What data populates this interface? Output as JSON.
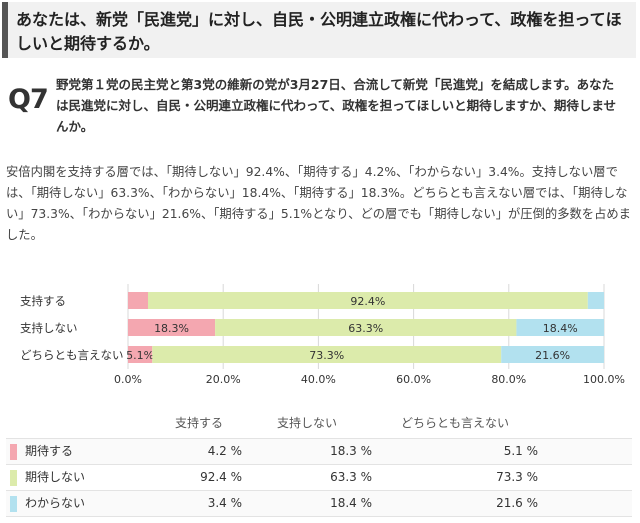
{
  "header": {
    "title": "あなたは、新党「民進党」に対し、自民・公明連立政権に代わって、政権を担ってほしいと期待するか。"
  },
  "question": {
    "label": "Q7",
    "text": "野党第１党の民主党と第3党の維新の党が3月27日、合流して新党「民進党」を結成します。あなたは民進党に対し、自民・公明連立政権に代わって、政権を担ってほしいと期待しますか、期待しませんか。"
  },
  "description": "安倍内閣を支持する層では、「期待しない」92.4%、「期待する」4.2%、「わからない」3.4%。支持しない層では、「期待しない」63.3%、「わからない」18.4%、「期待する」18.3%。どちらとも言えない層では、「期待しない」73.3%、「わからない」21.6%、「期待する」5.1%となり、どの層でも「期待しない」が圧倒的多数を占めました。",
  "chart_data": {
    "type": "bar",
    "orientation": "horizontal",
    "stacked": true,
    "categories": [
      "支持する",
      "支持しない",
      "どちらとも言えない"
    ],
    "series": [
      {
        "name": "期待する",
        "values": [
          4.2,
          18.3,
          5.1
        ],
        "color": "#f4a7b0"
      },
      {
        "name": "期待しない",
        "values": [
          92.4,
          63.3,
          73.3
        ],
        "color": "#dcebab"
      },
      {
        "name": "わからない",
        "values": [
          3.4,
          18.4,
          21.6
        ],
        "color": "#b2e1ef"
      }
    ],
    "data_labels": [
      [
        "",
        "92.4%",
        ""
      ],
      [
        "18.3%",
        "63.3%",
        "18.4%"
      ],
      [
        "5.1%",
        "73.3%",
        "21.6%"
      ]
    ],
    "xlim": [
      0,
      100
    ],
    "xticks": [
      "0.0%",
      "20.0%",
      "40.0%",
      "60.0%",
      "80.0%",
      "100.0%"
    ],
    "grid": true
  },
  "table": {
    "headers": [
      "支持する",
      "支持しない",
      "どちらとも言えない"
    ],
    "rows": [
      {
        "label": "期待する",
        "color": "#f4a7b0",
        "values": [
          "4.2 %",
          "18.3 %",
          "5.1 %"
        ]
      },
      {
        "label": "期待しない",
        "color": "#dcebab",
        "values": [
          "92.4 %",
          "63.3 %",
          "73.3 %"
        ]
      },
      {
        "label": "わからない",
        "color": "#b2e1ef",
        "values": [
          "3.4 %",
          "18.4 %",
          "21.6 %"
        ]
      }
    ]
  }
}
